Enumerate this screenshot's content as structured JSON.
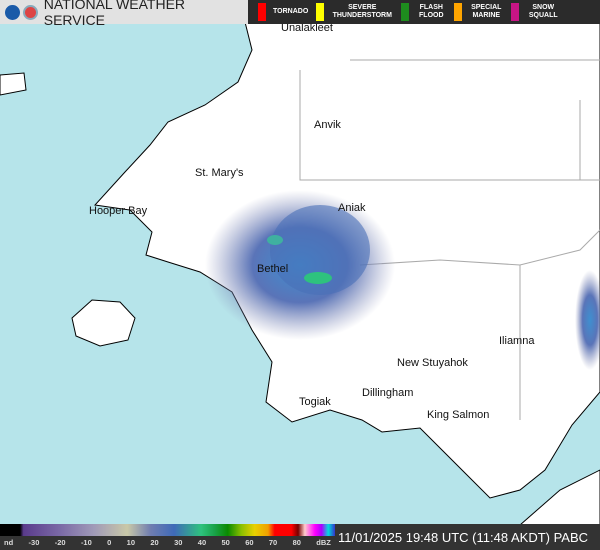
{
  "header": {
    "title": "NATIONAL WEATHER SERVICE",
    "warnings": [
      {
        "label": "TORNADO",
        "color": "#ff0000"
      },
      {
        "label": "SEVERE THUNDERSTORM",
        "color": "#ffff00"
      },
      {
        "label": "FLASH FLOOD",
        "color": "#1e8c1e"
      },
      {
        "label": "SPECIAL MARINE",
        "color": "#ffa500"
      },
      {
        "label": "SNOW SQUALL",
        "color": "#c71585"
      }
    ]
  },
  "places": {
    "unalakleet": "Unalakleet",
    "anvik": "Anvik",
    "st_marys": "St. Mary's",
    "hooper_bay": "Hooper Bay",
    "aniak": "Aniak",
    "bethel": "Bethel",
    "new_stuyahok": "New Stuyahok",
    "iliamna": "Iliamna",
    "dillingham": "Dillingham",
    "togiak": "Togiak",
    "king_salmon": "King Salmon"
  },
  "legend": {
    "ticks": [
      "nd",
      "-30",
      "-20",
      "-10",
      "0",
      "10",
      "20",
      "30",
      "40",
      "50",
      "60",
      "70",
      "80",
      "dBZ"
    ]
  },
  "timestamp": "11/01/2025 19:48 UTC (11:48 AKDT) PABC",
  "colors": {
    "water": "#b6e4ea",
    "land": "#ffffff"
  }
}
